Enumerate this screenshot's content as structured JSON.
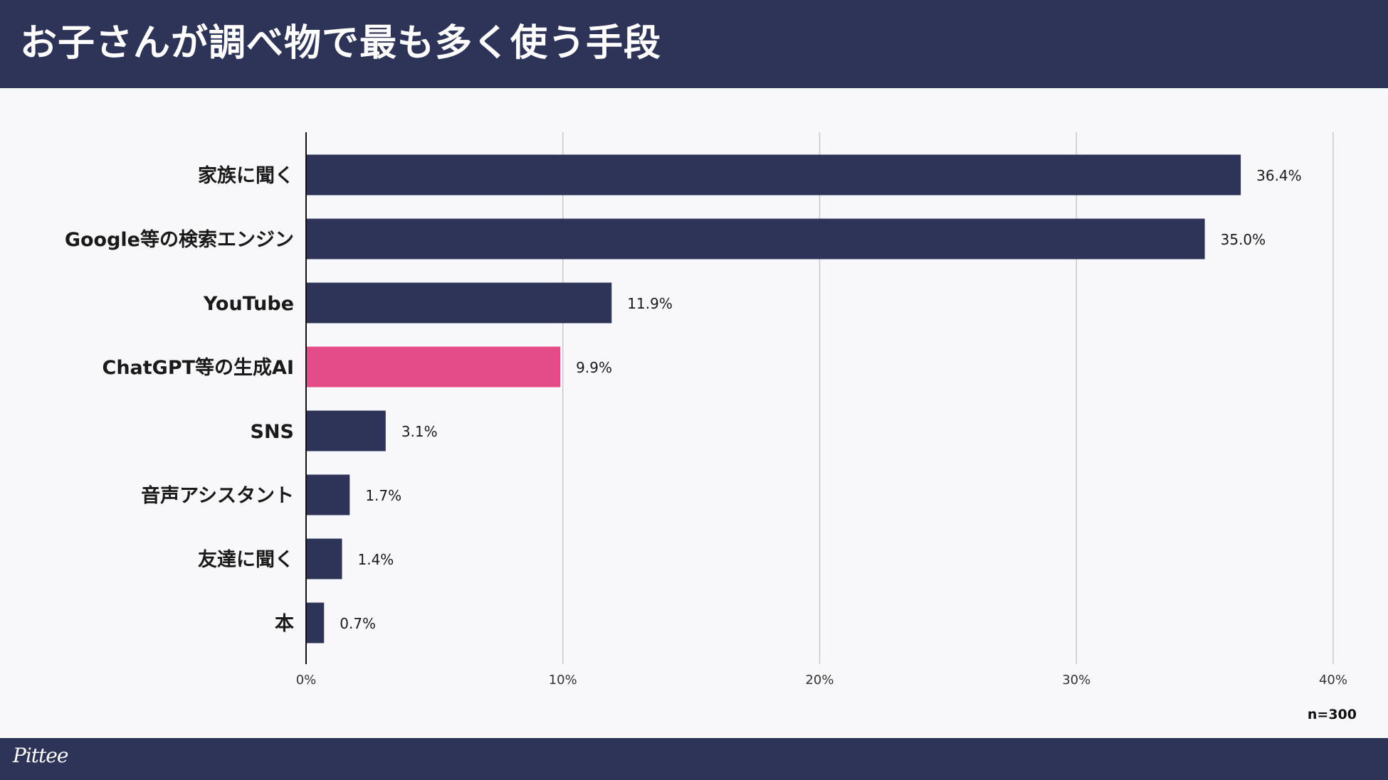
{
  "title": "お子さんが調べ物で最も多く使う手段",
  "note": "n=300",
  "logo": "Pittee",
  "colors": {
    "bar": "#2e3358",
    "highlight": "#e44c87",
    "header": "#2e3358"
  },
  "chart_data": {
    "type": "bar",
    "orientation": "horizontal",
    "title": "お子さんが調べ物で最も多く使う手段",
    "categories": [
      "家族に聞く",
      "Google等の検索エンジン",
      "YouTube",
      "ChatGPT等の生成AI",
      "SNS",
      "音声アシスタント",
      "友達に聞く",
      "本"
    ],
    "values": [
      36.4,
      35.0,
      11.9,
      9.9,
      3.1,
      1.7,
      1.4,
      0.7
    ],
    "value_labels": [
      "36.4%",
      "35.0%",
      "11.9%",
      "9.9%",
      "3.1%",
      "1.7%",
      "1.4%",
      "0.7%"
    ],
    "highlight_index": 3,
    "xlim": [
      0,
      40
    ],
    "xticks": [
      0,
      10,
      20,
      30,
      40
    ],
    "xtick_labels": [
      "0%",
      "10%",
      "20%",
      "30%",
      "40%"
    ],
    "grid": true,
    "unit": "%"
  }
}
